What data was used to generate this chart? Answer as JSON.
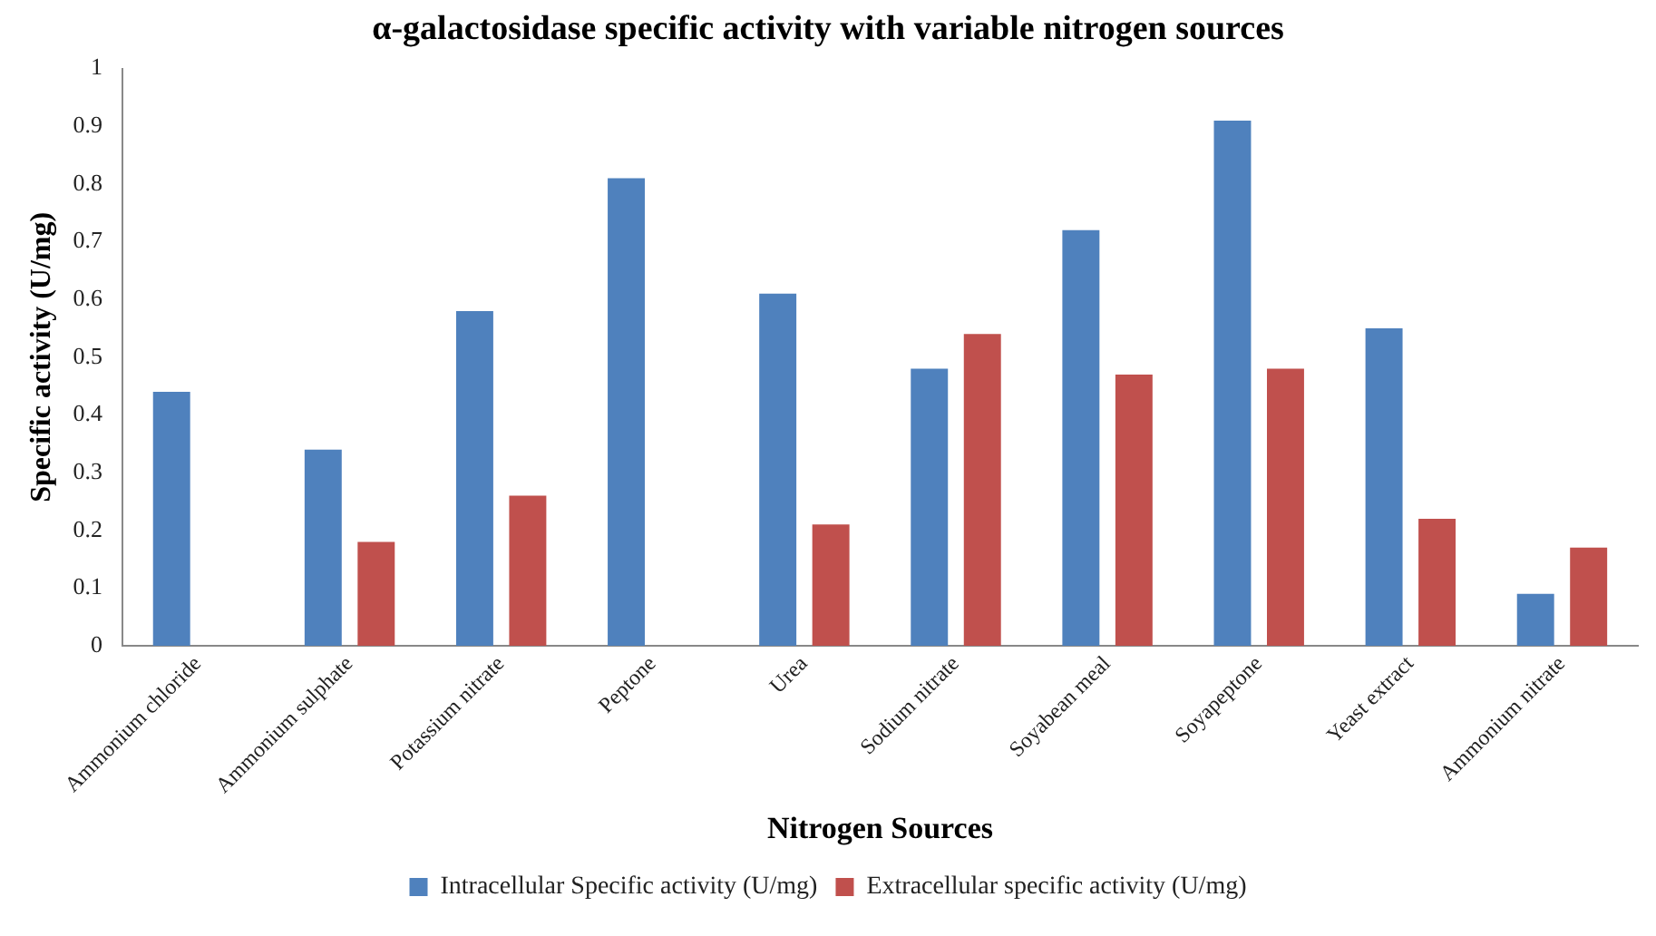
{
  "chart_data": {
    "type": "bar",
    "title": "α-galactosidase specific activity with variable nitrogen sources",
    "xlabel": "Nitrogen Sources",
    "ylabel": "Specific activity (U/mg)",
    "categories": [
      "Ammonium chloride",
      "Ammonium sulphate",
      "Potassium nitrate",
      "Peptone",
      "Urea",
      "Sodium nitrate",
      "Soyabean meal",
      "Soyapeptone",
      "Yeast extract",
      "Ammonium nitrate"
    ],
    "series": [
      {
        "name": "Intracellular Specific activity (U/mg)",
        "color": "#4f81bd",
        "values": [
          0.44,
          0.34,
          0.58,
          0.81,
          0.61,
          0.48,
          0.72,
          0.91,
          0.55,
          0.09
        ]
      },
      {
        "name": "Extracellular specific activity (U/mg)",
        "color": "#c0504d",
        "values": [
          0,
          0.18,
          0.26,
          0,
          0.21,
          0.54,
          0.47,
          0.48,
          0.22,
          0.17
        ]
      }
    ],
    "ylim": [
      0,
      1
    ],
    "yticks": [
      0,
      0.1,
      0.2,
      0.3,
      0.4,
      0.5,
      0.6,
      0.7,
      0.8,
      0.9,
      1
    ],
    "grid": false,
    "legend": "bottom"
  }
}
